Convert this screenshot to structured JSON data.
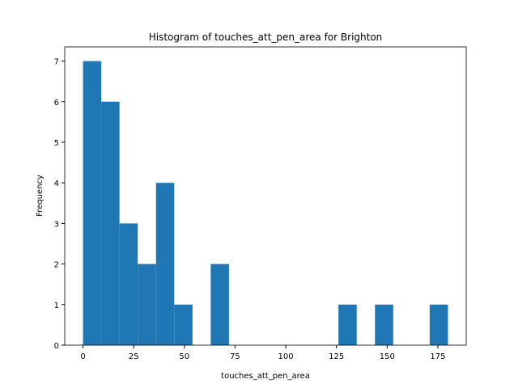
{
  "chart_data": {
    "type": "histogram",
    "title": "Histogram of touches_att_pen_area for Brighton",
    "x_label": "touches_att_pen_area",
    "y_label": "Frequency",
    "bins": [
      0,
      9,
      18,
      27,
      36,
      45,
      54,
      63,
      72,
      81,
      90,
      99,
      108,
      117,
      126,
      135,
      144,
      153,
      162,
      171,
      180
    ],
    "counts": [
      7,
      6,
      3,
      2,
      4,
      1,
      0,
      2,
      0,
      0,
      0,
      0,
      0,
      0,
      1,
      0,
      1,
      0,
      0,
      1
    ],
    "color": "#1f77b4",
    "xlim": [
      -9,
      189
    ],
    "xticks": [
      0,
      25,
      50,
      75,
      100,
      125,
      150,
      175
    ],
    "ylim": [
      0,
      7.35
    ],
    "yticks": [
      0,
      1,
      2,
      3,
      4,
      5,
      6,
      7
    ]
  }
}
